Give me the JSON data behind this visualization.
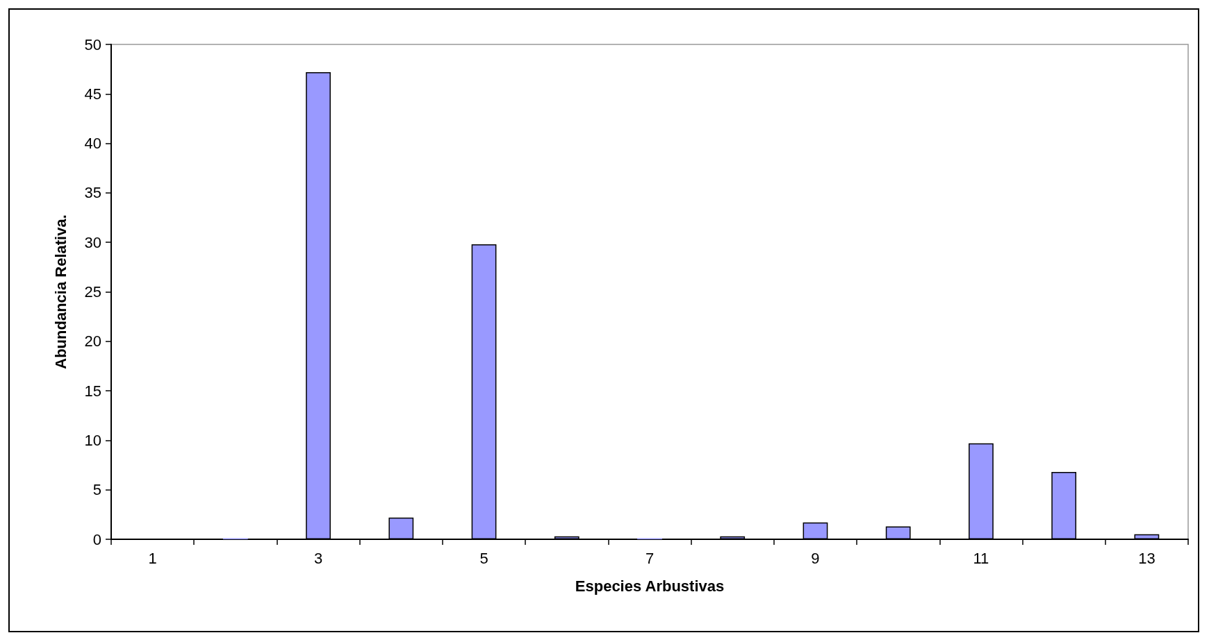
{
  "chart_data": {
    "type": "bar",
    "xlabel": "Especies Arbustivas",
    "ylabel": "Abundancia Relativa.",
    "categories": [
      "1",
      null,
      "3",
      null,
      "5",
      null,
      "7",
      null,
      "9",
      null,
      "11",
      null,
      "13"
    ],
    "values": [
      0,
      0.1,
      47.2,
      2.2,
      29.8,
      0.3,
      0.1,
      0.3,
      1.7,
      1.3,
      9.7,
      6.8,
      0.5
    ],
    "color": "#9999ff",
    "ylim": [
      0,
      50
    ],
    "yticks": [
      0,
      5,
      10,
      15,
      20,
      25,
      30,
      35,
      40,
      45,
      50
    ],
    "grid": false
  }
}
